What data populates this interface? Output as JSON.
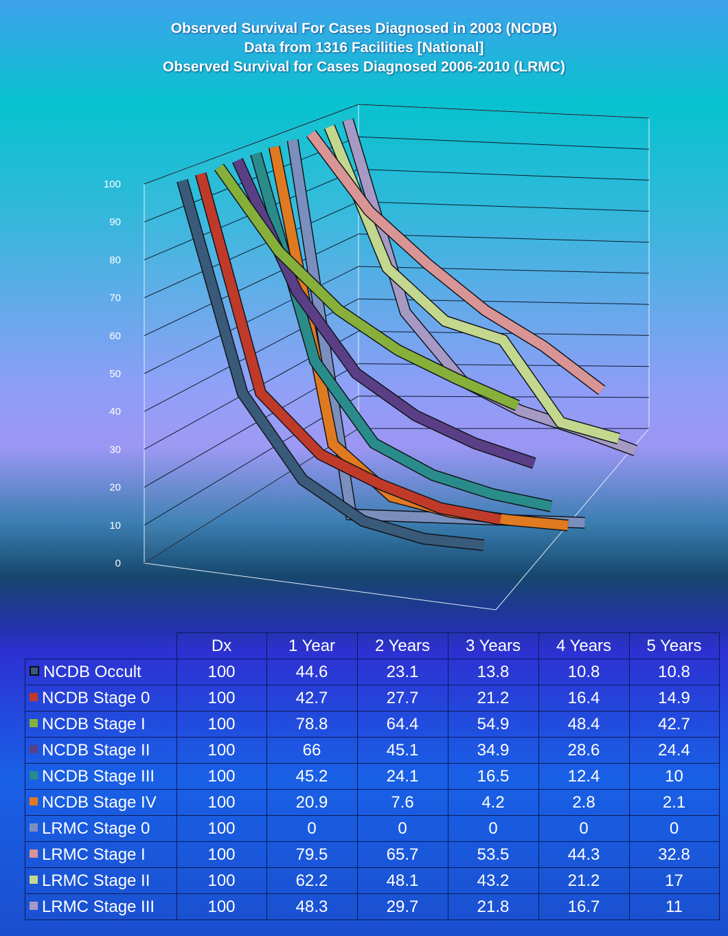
{
  "title": {
    "line1": "Observed Survival For  Cases Diagnosed in 2003 (NCDB)",
    "line2": "Data from 1316 Facilities [National]",
    "line3": "Observed Survival for Cases Diagnosed 2006-2010 (LRMC)"
  },
  "chart_data": {
    "type": "line",
    "style": "3d-line",
    "title": "Observed Survival For  Cases Diagnosed in 2003 (NCDB) / Data from 1316 Facilities [National] / Observed Survival for Cases Diagnosed 2006-2010 (LRMC)",
    "categories": [
      "Dx",
      "1 Year",
      "2 Years",
      "3 Years",
      "4 Years",
      "5 Years"
    ],
    "ylim": [
      0,
      100
    ],
    "yticks": [
      0,
      10,
      20,
      30,
      40,
      50,
      60,
      70,
      80,
      90,
      100
    ],
    "grid": true,
    "legend": "data-table",
    "series": [
      {
        "name": "NCDB Occult",
        "color": "#3a5a7a",
        "values": [
          100,
          44.6,
          23.1,
          13.8,
          10.8,
          10.8
        ]
      },
      {
        "name": "NCDB Stage 0",
        "color": "#c03a2a",
        "values": [
          100,
          42.7,
          27.7,
          21.2,
          16.4,
          14.9
        ]
      },
      {
        "name": "NCDB Stage I",
        "color": "#86b03a",
        "values": [
          100,
          78.8,
          64.4,
          54.9,
          48.4,
          42.7
        ]
      },
      {
        "name": "NCDB Stage II",
        "color": "#5b3f86",
        "values": [
          100,
          66,
          45.1,
          34.9,
          28.6,
          24.4
        ]
      },
      {
        "name": "NCDB Stage III",
        "color": "#2a8c8a",
        "values": [
          100,
          45.2,
          24.1,
          16.5,
          12.4,
          10
        ]
      },
      {
        "name": "NCDB Stage IV",
        "color": "#e07a20",
        "values": [
          100,
          20.9,
          7.6,
          4.2,
          2.8,
          2.1
        ]
      },
      {
        "name": "LRMC Stage 0",
        "color": "#7b8fbe",
        "values": [
          100,
          0,
          0,
          0,
          0,
          0
        ]
      },
      {
        "name": "LRMC Stage I",
        "color": "#d99595",
        "values": [
          100,
          79.5,
          65.7,
          53.5,
          44.3,
          32.8
        ]
      },
      {
        "name": "LRMC Stage II",
        "color": "#c3d88e",
        "values": [
          100,
          62.2,
          48.1,
          43.2,
          21.2,
          17
        ]
      },
      {
        "name": "LRMC Stage III",
        "color": "#a69ac4",
        "values": [
          100,
          48.3,
          29.7,
          21.8,
          16.7,
          11
        ]
      }
    ]
  },
  "table": {
    "headers": [
      "Dx",
      "1 Year",
      "2 Years",
      "3 Years",
      "4 Years",
      "5 Years"
    ],
    "rows": [
      {
        "label": "NCDB Occult",
        "values": [
          "100",
          "44.6",
          "23.1",
          "13.8",
          "10.8",
          "10.8"
        ]
      },
      {
        "label": "NCDB Stage 0",
        "values": [
          "100",
          "42.7",
          "27.7",
          "21.2",
          "16.4",
          "14.9"
        ]
      },
      {
        "label": "NCDB Stage I",
        "values": [
          "100",
          "78.8",
          "64.4",
          "54.9",
          "48.4",
          "42.7"
        ]
      },
      {
        "label": "NCDB Stage II",
        "values": [
          "100",
          "66",
          "45.1",
          "34.9",
          "28.6",
          "24.4"
        ]
      },
      {
        "label": "NCDB Stage III",
        "values": [
          "100",
          "45.2",
          "24.1",
          "16.5",
          "12.4",
          "10"
        ]
      },
      {
        "label": "NCDB Stage IV",
        "values": [
          "100",
          "20.9",
          "7.6",
          "4.2",
          "2.8",
          "2.1"
        ]
      },
      {
        "label": "LRMC Stage 0",
        "values": [
          "100",
          "0",
          "0",
          "0",
          "0",
          "0"
        ]
      },
      {
        "label": "LRMC Stage I",
        "values": [
          "100",
          "79.5",
          "65.7",
          "53.5",
          "44.3",
          "32.8"
        ]
      },
      {
        "label": "LRMC Stage II",
        "values": [
          "100",
          "62.2",
          "48.1",
          "43.2",
          "21.2",
          "17"
        ]
      },
      {
        "label": "LRMC Stage III",
        "values": [
          "100",
          "48.3",
          "29.7",
          "21.8",
          "16.7",
          "11"
        ]
      }
    ]
  }
}
